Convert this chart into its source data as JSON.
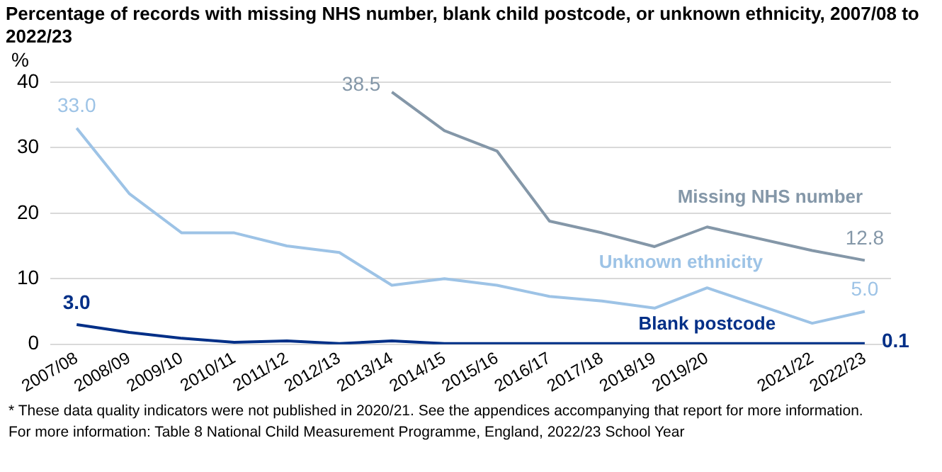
{
  "chart_data": {
    "type": "line",
    "title": "Percentage of records with missing NHS number, blank child postcode, or unknown ethnicity, 2007/08 to 2022/23",
    "ylabel": "%",
    "categories": [
      "2007/08",
      "2008/09",
      "2009/10",
      "2010/11",
      "2011/12",
      "2012/13",
      "2013/14",
      "2014/15",
      "2015/16",
      "2016/17",
      "2017/18",
      "2018/19",
      "2019/20",
      null,
      "2021/22",
      "2022/23"
    ],
    "series": [
      {
        "name": "Missing NHS number",
        "color": "#8497a8",
        "values": [
          null,
          null,
          null,
          null,
          null,
          null,
          38.5,
          32.6,
          29.5,
          18.8,
          17.0,
          14.9,
          17.9,
          null,
          14.3,
          12.8
        ],
        "value_labels": [
          null,
          null,
          null,
          null,
          null,
          null,
          "38.5",
          null,
          null,
          null,
          null,
          null,
          null,
          null,
          null,
          "12.8"
        ]
      },
      {
        "name": "Unknown ethnicity",
        "color": "#9dc3e6",
        "values": [
          33.0,
          23,
          17,
          17,
          15,
          14,
          9,
          10,
          9,
          7.3,
          6.6,
          5.5,
          8.6,
          null,
          3.2,
          5.0
        ],
        "value_labels": [
          "33.0",
          null,
          null,
          null,
          null,
          null,
          null,
          null,
          null,
          null,
          null,
          null,
          null,
          null,
          null,
          "5.0"
        ]
      },
      {
        "name": "Blank postcode",
        "color": "#002f87",
        "values": [
          3.0,
          1.8,
          0.9,
          0.3,
          0.5,
          0.1,
          0.5,
          0.1,
          0.1,
          0.1,
          0.1,
          0.1,
          0.1,
          null,
          0.1,
          0.1
        ],
        "value_labels": [
          "3.0",
          null,
          null,
          null,
          null,
          null,
          null,
          null,
          null,
          null,
          null,
          null,
          null,
          null,
          null,
          "0.1"
        ]
      }
    ],
    "ylim": [
      0,
      40
    ],
    "yticks": [
      0,
      10,
      20,
      30,
      40
    ],
    "grid": "y",
    "legend": false,
    "marker": "none",
    "line_style": "solid",
    "annotations": [
      "* These data quality indicators were not published in 2020/21. See the appendices accompanying that report for more information.",
      "For more information: Table 8 National Child Measurement Programme, England, 2022/23 School Year"
    ]
  }
}
